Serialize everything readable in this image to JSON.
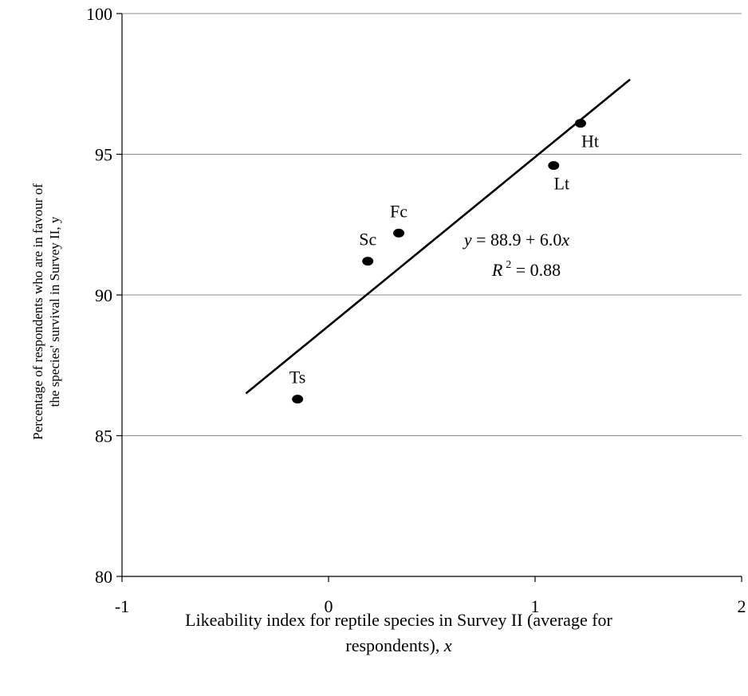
{
  "chart_data": {
    "type": "scatter",
    "xlabel_line1": "Likeability index for reptile species in Survey II (average for",
    "xlabel_line2": "respondents), ",
    "xlabel_var": "x",
    "ylabel_line1": "Percentage of respondents who are in favour of",
    "ylabel_line2": "the species' survival in Survey II, y",
    "xlim": [
      -1,
      2
    ],
    "ylim": [
      80,
      100
    ],
    "x_ticks": [
      -1,
      0,
      1,
      2
    ],
    "y_ticks": [
      80,
      85,
      90,
      95,
      100
    ],
    "grid": "horizontal",
    "points": [
      {
        "label": "Ts",
        "x": -0.15,
        "y": 86.3
      },
      {
        "label": "Sc",
        "x": 0.19,
        "y": 91.2
      },
      {
        "label": "Fc",
        "x": 0.34,
        "y": 92.2
      },
      {
        "label": "Lt",
        "x": 1.09,
        "y": 94.6
      },
      {
        "label": "Ht",
        "x": 1.22,
        "y": 96.1
      }
    ],
    "trendline": {
      "intercept": 88.9,
      "slope": 6.0,
      "x_range": [
        -0.4,
        1.46
      ]
    },
    "equation": {
      "y": "y",
      "rhs": " = 88.9 + 6.0",
      "x": "x",
      "R": "R",
      "exp": "2",
      "rhs2": " = 0.88"
    }
  }
}
